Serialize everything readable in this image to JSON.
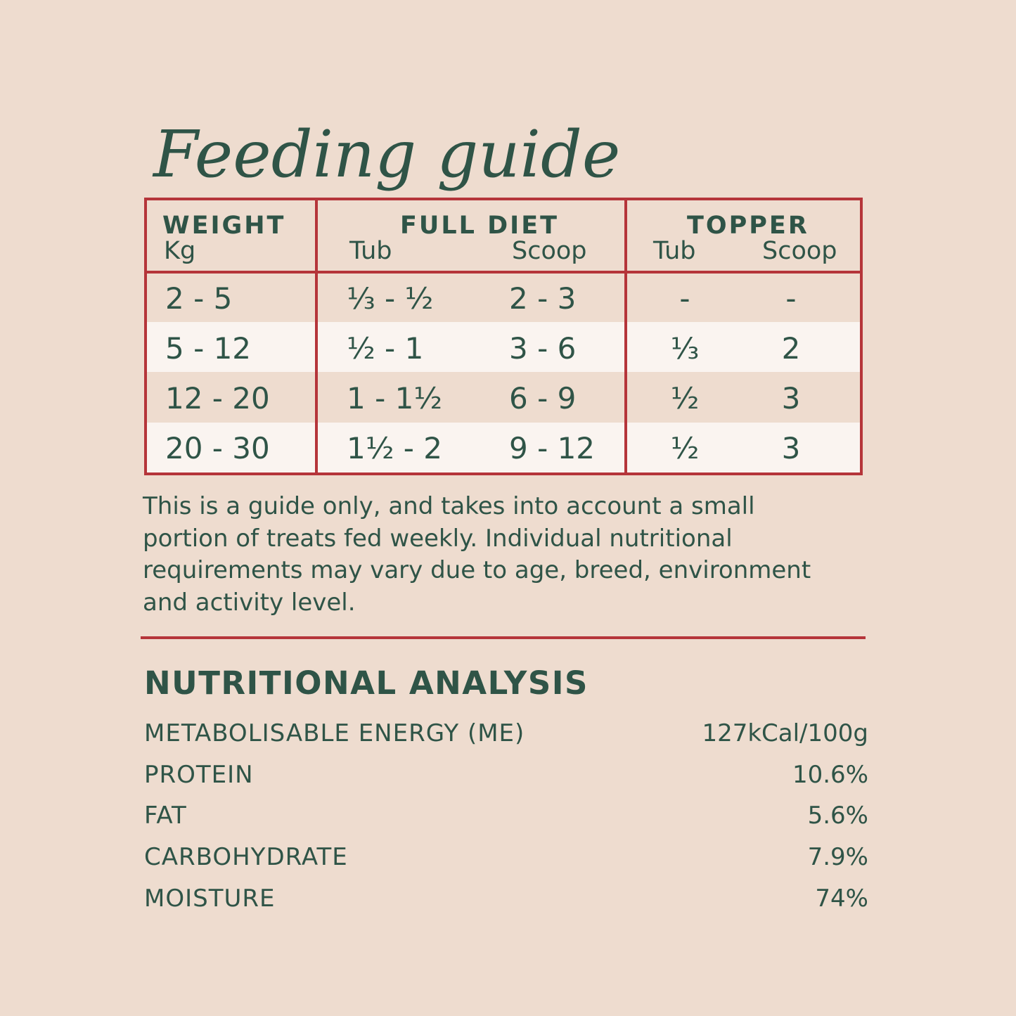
{
  "title": "Feeding guide",
  "table": {
    "headers": {
      "weight": "WEIGHT",
      "weight_unit": "Kg",
      "full_diet": "FULL DIET",
      "full_diet_tub": "Tub",
      "full_diet_scoop": "Scoop",
      "topper": "TOPPER",
      "topper_tub": "Tub",
      "topper_scoop": "Scoop"
    },
    "rows": [
      [
        "2 - 5",
        "⅓ - ½",
        "2 - 3",
        "-",
        "-"
      ],
      [
        "5 - 12",
        "½ - 1",
        "3 - 6",
        "⅓",
        "2"
      ],
      [
        "12 - 20",
        "1 - 1½",
        "6 - 9",
        "½",
        "3"
      ],
      [
        "20 - 30",
        "1½ - 2",
        "9 - 12",
        "½",
        "3"
      ]
    ]
  },
  "note": "This is a guide only, and takes into account a small portion of treats fed weekly. Individual nutritional requirements may vary due to age, breed, environment and activity level.",
  "nutrition": {
    "title": "NUTRITIONAL ANALYSIS",
    "rows": [
      [
        "METABOLISABLE ENERGY (ME)",
        "127kCal/100g"
      ],
      [
        "PROTEIN",
        "10.6%"
      ],
      [
        "FAT",
        "5.6%"
      ],
      [
        "CARBOHYDRATE",
        "7.9%"
      ],
      [
        "MOISTURE",
        "74%"
      ]
    ]
  }
}
